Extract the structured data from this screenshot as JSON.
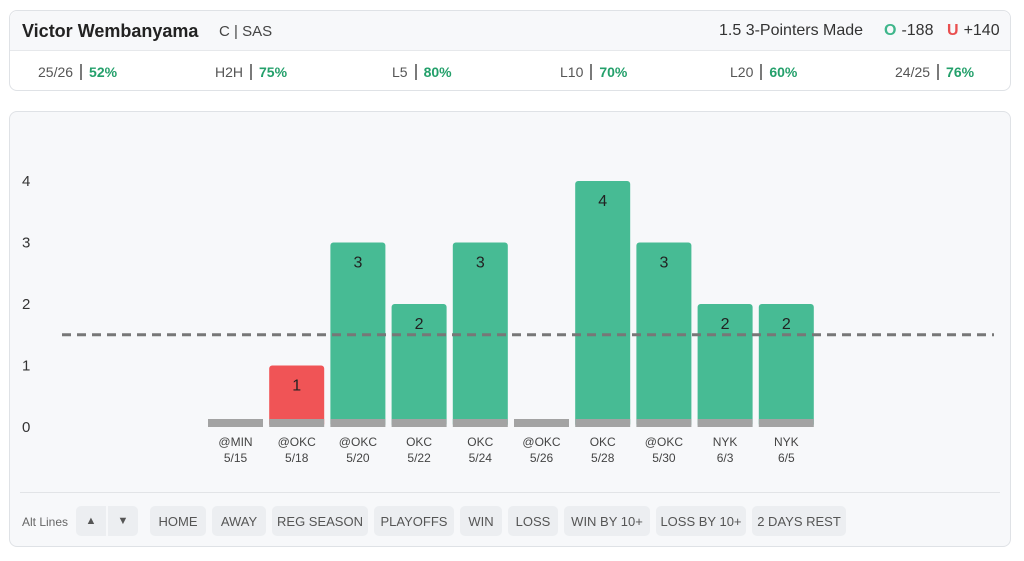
{
  "player": {
    "name": "Victor Wembanyama",
    "position_team": "C | SAS"
  },
  "prop": {
    "line_label": "1.5 3-Pointers Made",
    "over_mark": "O",
    "over_odds": "-188",
    "under_mark": "U",
    "under_odds": "+140"
  },
  "stats": [
    {
      "label": "25/26",
      "value": "52%"
    },
    {
      "label": "H2H",
      "value": "75%"
    },
    {
      "label": "L5",
      "value": "80%"
    },
    {
      "label": "L10",
      "value": "70%"
    },
    {
      "label": "L20",
      "value": "60%"
    },
    {
      "label": "24/25",
      "value": "76%"
    }
  ],
  "filters": {
    "alt_lines_label": "Alt Lines",
    "chips": [
      "HOME",
      "AWAY",
      "REG SEASON",
      "PLAYOFFS",
      "WIN",
      "LOSS",
      "WIN BY 10+",
      "LOSS BY 10+",
      "2 DAYS REST"
    ]
  },
  "colors": {
    "over": "#47bb94",
    "under": "#f05456",
    "zero": "#a3a3a3",
    "line": "#777777",
    "accent_green": "#24a06b"
  },
  "chart_data": {
    "type": "bar",
    "categories": [
      "@MIN 5/15",
      "@OKC 5/18",
      "@OKC 5/20",
      "OKC 5/22",
      "OKC 5/24",
      "@OKC 5/26",
      "OKC 5/28",
      "@OKC 5/30",
      "NYK 6/3",
      "NYK 6/5"
    ],
    "opponents": [
      "@MIN",
      "@OKC",
      "@OKC",
      "OKC",
      "OKC",
      "@OKC",
      "OKC",
      "@OKC",
      "NYK",
      "NYK"
    ],
    "dates": [
      "5/15",
      "5/18",
      "5/20",
      "5/22",
      "5/24",
      "5/26",
      "5/28",
      "5/30",
      "6/3",
      "6/5"
    ],
    "values": [
      0,
      1,
      3,
      2,
      3,
      0,
      4,
      3,
      2,
      2
    ],
    "reference_line": 1.5,
    "yticks": [
      0,
      1,
      2,
      3,
      4
    ],
    "ylim": [
      0,
      4.75
    ],
    "title": "",
    "xlabel": "",
    "ylabel": "",
    "grid": false
  }
}
